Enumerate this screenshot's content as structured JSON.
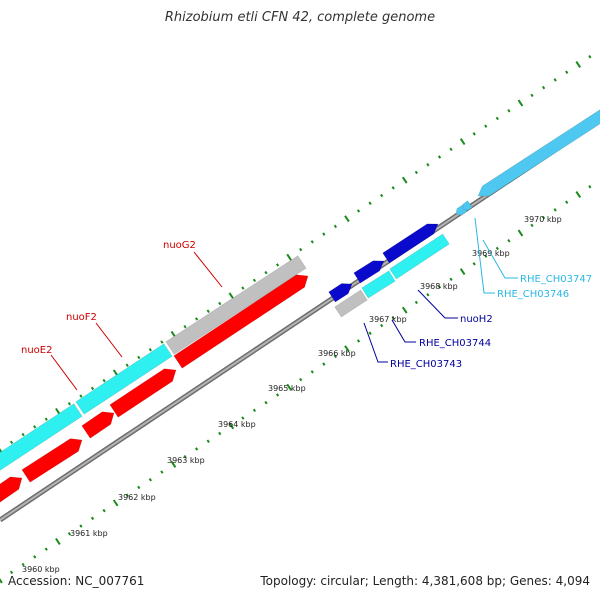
{
  "title": "Rhizobium etli CFN 42, complete genome",
  "footer": {
    "accession": "Accession: NC_007761",
    "summary": "Topology: circular; Length: 4,381,608 bp; Genes: 4,094"
  },
  "colors": {
    "backbone": "#8a8a8a",
    "tick": "#1a8a1a",
    "red": "#ff0000",
    "cyan": "#2ef0f0",
    "blue": "#0a0acc",
    "gray": "#c0c0c0",
    "lightblue": "#4ec8f0"
  },
  "scale_labels": [
    "3960 kbp",
    "3961 kbp",
    "3962 kbp",
    "3963 kbp",
    "3964 kbp",
    "3965 kbp",
    "3966 kbp",
    "3967 kbp",
    "3968 kbp",
    "3969 kbp",
    "3970 kbp"
  ],
  "gene_labels": [
    {
      "text": "nuoG2",
      "color": "#cc0000"
    },
    {
      "text": "nuoF2",
      "color": "#cc0000"
    },
    {
      "text": "nuoE2",
      "color": "#cc0000"
    },
    {
      "text": "nuoH2",
      "color": "#000099"
    },
    {
      "text": "RHE_CH03744",
      "color": "#000099"
    },
    {
      "text": "RHE_CH03743",
      "color": "#000099"
    },
    {
      "text": "RHE_CH03747",
      "color": "#2ab8e6"
    },
    {
      "text": "RHE_CH03746",
      "color": "#2ab8e6"
    }
  ]
}
